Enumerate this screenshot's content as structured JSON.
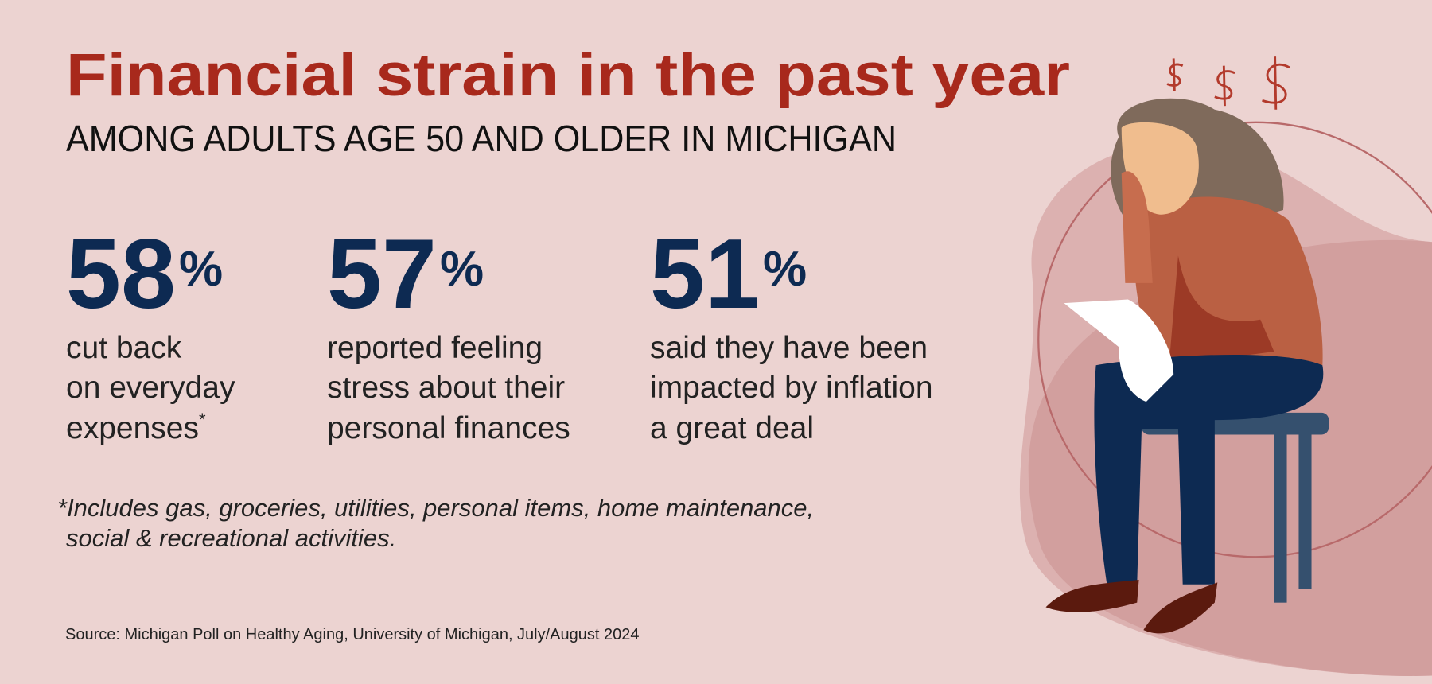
{
  "header": {
    "title": "Financial strain in the past year",
    "subtitle": "AMONG ADULTS AGE 50 AND OLDER IN MICHIGAN"
  },
  "stats": [
    {
      "value": "58",
      "unit": "%",
      "lines": [
        "cut back",
        "on everyday",
        "expenses"
      ],
      "note_mark": "*"
    },
    {
      "value": "57",
      "unit": "%",
      "lines": [
        "reported feeling",
        "stress about their",
        "personal finances"
      ]
    },
    {
      "value": "51",
      "unit": "%",
      "lines": [
        "said they have been",
        "impacted by inflation",
        "a great deal"
      ]
    }
  ],
  "footnote": [
    "*Includes gas, groceries, utilities, personal items, home maintenance,",
    "social & recreational activities."
  ],
  "source": "Source: Michigan Poll on Healthy Aging, University of Michigan, July/August 2024"
}
